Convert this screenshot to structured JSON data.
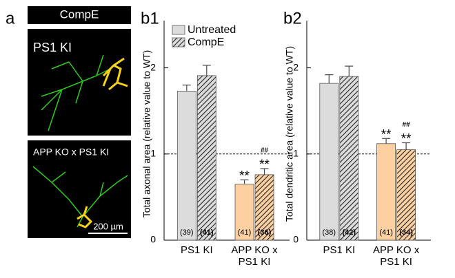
{
  "panel_a": {
    "label": "a",
    "header": "CompE",
    "top_image_label": "PS1 KI",
    "bottom_image_label": "APP KO x PS1 KI",
    "scale_bar": "200 µm"
  },
  "chart_data": [
    {
      "type": "bar",
      "label": "b1",
      "ylabel": "Total axonal area (relative value to WT)",
      "categories": [
        "PS1 KI",
        "APP KO x PS1 KI"
      ],
      "ylim": [
        0,
        2.5
      ],
      "yticks": [
        0,
        1,
        2
      ],
      "reference_line": 1,
      "legend": "top-left",
      "series": [
        {
          "name": "Untreated",
          "hatched": false,
          "colors": [
            "#dcdcdc",
            "#fdd0a2"
          ],
          "values": [
            1.73,
            0.65
          ],
          "errors": [
            0.07,
            0.05
          ],
          "n_labels": [
            "(39)",
            "(41)"
          ],
          "stars": [
            null,
            "**"
          ],
          "hashes": [
            null,
            null
          ]
        },
        {
          "name": "CompE",
          "hatched": true,
          "colors": [
            "#dcdcdc",
            "#fdd0a2"
          ],
          "values": [
            1.91,
            0.76
          ],
          "errors": [
            0.12,
            0.07
          ],
          "n_labels": [
            "(41)",
            "(36)"
          ],
          "stars": [
            null,
            "**"
          ],
          "hashes": [
            null,
            "##"
          ]
        }
      ]
    },
    {
      "type": "bar",
      "label": "b2",
      "ylabel": "Total dendritic area (relative value to WT)",
      "categories": [
        "PS1 KI",
        "APP KO x PS1 KI"
      ],
      "ylim": [
        0,
        2.5
      ],
      "yticks": [
        0,
        1,
        2
      ],
      "reference_line": 1,
      "series": [
        {
          "hatched": false,
          "colors": [
            "#dcdcdc",
            "#fdd0a2"
          ],
          "values": [
            1.82,
            1.12
          ],
          "errors": [
            0.1,
            0.06
          ],
          "n_labels": [
            "(38)",
            "(41)"
          ],
          "stars": [
            null,
            "**"
          ],
          "hashes": [
            null,
            null
          ]
        },
        {
          "hatched": true,
          "colors": [
            "#dcdcdc",
            "#fdd0a2"
          ],
          "values": [
            1.9,
            1.05
          ],
          "errors": [
            0.12,
            0.08
          ],
          "n_labels": [
            "(42)",
            "(34)"
          ],
          "stars": [
            null,
            "**"
          ],
          "hashes": [
            null,
            "##"
          ]
        }
      ]
    }
  ]
}
